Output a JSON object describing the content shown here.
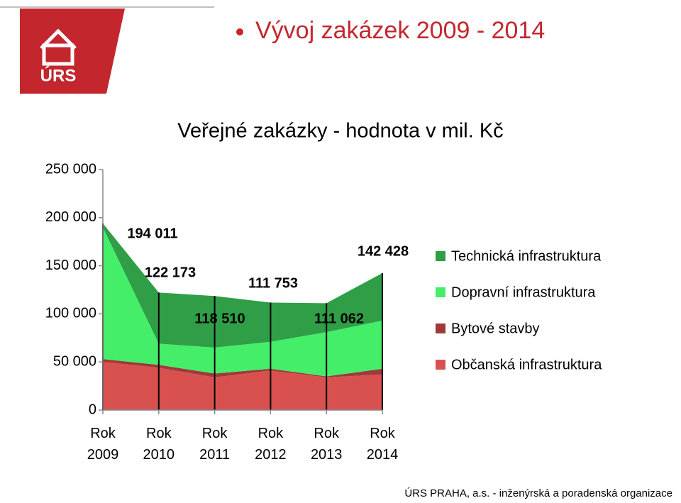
{
  "slide_title": "Vývoj zakázek 2009 - 2014",
  "logo_text": "ÚRS",
  "footer": "ÚRS PRAHA, a.s. - inženýrská a poradenská organizace",
  "chart_data": {
    "type": "stacked_area",
    "title": "Veřejné zakázky - hodnota v mil. Kč",
    "categories": [
      "Rok 2009",
      "Rok 2010",
      "Rok 2011",
      "Rok 2012",
      "Rok 2013",
      "Rok 2014"
    ],
    "series": [
      {
        "name": "Občanská infrastruktura",
        "color": "#d9514f",
        "values": [
          50000,
          44000,
          34000,
          41000,
          34000,
          37000
        ]
      },
      {
        "name": "Bytové stavby",
        "color": "#9e3a3a",
        "values": [
          3000,
          3000,
          4000,
          2000,
          1000,
          6000
        ]
      },
      {
        "name": "Dopravní infrastruktura",
        "color": "#44ee69",
        "values": [
          137000,
          22000,
          27000,
          28000,
          46000,
          50000
        ]
      },
      {
        "name": "Technická infrastruktura",
        "color": "#2f9e47",
        "values": [
          4011,
          53173,
          53510,
          40753,
          30062,
          49428
        ]
      }
    ],
    "totals": [
      194011,
      122173,
      118510,
      111753,
      111062,
      142428
    ],
    "total_labels": [
      "194 011",
      "122 173",
      "118 510",
      "111 753",
      "111 062",
      "142 428"
    ],
    "ylim": [
      0,
      250000
    ],
    "yticks": [
      0,
      {
        "value": 50000,
        "label": "50 000"
      },
      {
        "value": 100000,
        "label": "100 000"
      },
      {
        "value": 150000,
        "label": "150 000"
      },
      {
        "value": 200000,
        "label": "200 000"
      },
      {
        "value": 250000,
        "label": "250 000"
      }
    ],
    "legend": "right"
  }
}
